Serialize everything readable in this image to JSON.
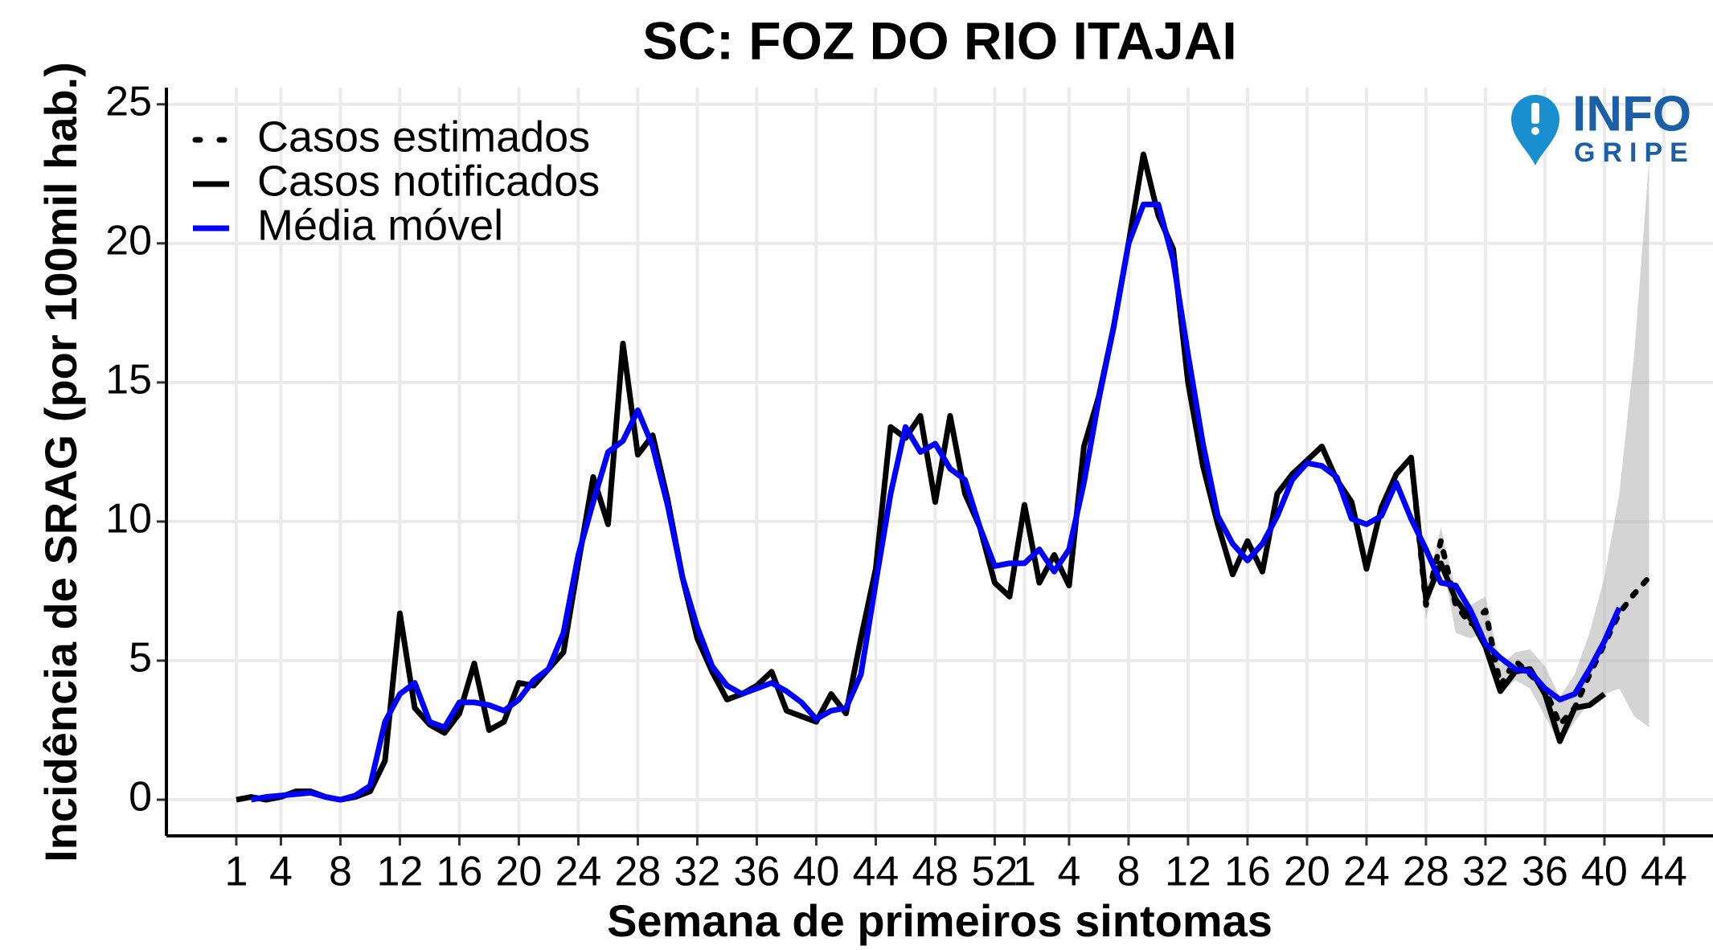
{
  "chart_data": {
    "type": "line",
    "title": "SC: FOZ DO RIO ITAJAI",
    "xlabel": "Semana de primeiros sintomas",
    "ylabel": "Incidência de SRAG (por 100mil hab.)",
    "xlim": [
      -3.7,
      100.3
    ],
    "ylim": [
      -1.3,
      25.6
    ],
    "grid": true,
    "legend": "upper left",
    "xticks": [
      1,
      4,
      8,
      12,
      16,
      20,
      24,
      28,
      32,
      36,
      40,
      44,
      48,
      52,
      {
        "value": 54,
        "label": "1"
      },
      {
        "value": 57,
        "label": "4"
      },
      {
        "value": 61,
        "label": "8"
      },
      {
        "value": 65,
        "label": "12"
      },
      {
        "value": 69,
        "label": "16"
      },
      {
        "value": 73,
        "label": "20"
      },
      {
        "value": 77,
        "label": "24"
      },
      {
        "value": 81,
        "label": "28"
      },
      {
        "value": 85,
        "label": "32"
      },
      {
        "value": 89,
        "label": "36"
      },
      {
        "value": 93,
        "label": "40"
      },
      {
        "value": 97,
        "label": "44"
      }
    ],
    "yticks": [
      0,
      5,
      10,
      15,
      20,
      25
    ],
    "band": {
      "color": "#b0b0b0",
      "x": [
        80,
        81,
        82,
        83,
        84,
        85,
        86,
        87,
        88,
        89,
        90,
        91,
        92,
        93,
        94,
        95,
        96
      ],
      "lower": [
        12.0,
        6.5,
        8.8,
        6.0,
        5.8,
        6.0,
        3.8,
        4.3,
        4.0,
        3.0,
        2.0,
        2.8,
        3.5,
        3.8,
        4.0,
        3.0,
        2.6
      ],
      "upper": [
        12.5,
        7.5,
        9.8,
        7.5,
        7.0,
        7.3,
        4.8,
        5.3,
        5.4,
        4.8,
        3.7,
        4.5,
        6.0,
        8.0,
        11.0,
        16.0,
        23.0
      ]
    },
    "series": [
      {
        "name": "Casos estimados",
        "color": "#000000",
        "linestyle": "dotted",
        "x": [
          80,
          81,
          82,
          83,
          84,
          85,
          86,
          87,
          88,
          89,
          90,
          91,
          92,
          93,
          94,
          95,
          96
        ],
        "values": [
          12.3,
          7.0,
          9.3,
          7.0,
          6.3,
          6.8,
          4.1,
          5.0,
          4.5,
          4.0,
          2.7,
          3.3,
          4.5,
          5.6,
          6.7,
          7.4,
          8.0
        ]
      },
      {
        "name": "Casos notificados",
        "color": "#000000",
        "linestyle": "solid",
        "x": [
          1,
          2,
          3,
          4,
          5,
          6,
          7,
          8,
          9,
          10,
          11,
          12,
          13,
          14,
          15,
          16,
          17,
          18,
          19,
          20,
          21,
          22,
          23,
          24,
          25,
          26,
          27,
          28,
          29,
          30,
          31,
          32,
          33,
          34,
          35,
          36,
          37,
          38,
          39,
          40,
          41,
          42,
          43,
          44,
          45,
          46,
          47,
          48,
          49,
          50,
          51,
          52,
          53,
          54,
          55,
          56,
          57,
          58,
          59,
          60,
          61,
          62,
          63,
          64,
          65,
          66,
          67,
          68,
          69,
          70,
          71,
          72,
          73,
          74,
          75,
          76,
          77,
          78,
          79,
          80,
          81,
          82,
          83,
          84,
          85,
          86,
          87,
          88,
          89,
          90,
          91,
          92,
          93
        ],
        "values": [
          0,
          0.1,
          0,
          0.1,
          0.3,
          0.3,
          0.1,
          0,
          0.1,
          0.3,
          1.4,
          6.7,
          3.3,
          2.7,
          2.4,
          3.1,
          4.9,
          2.5,
          2.8,
          4.2,
          4.1,
          4.7,
          5.3,
          8.5,
          11.6,
          9.9,
          16.4,
          12.4,
          13.1,
          10.8,
          8.0,
          5.8,
          4.6,
          3.6,
          3.8,
          4.1,
          4.6,
          3.2,
          3.0,
          2.8,
          3.8,
          3.1,
          5.8,
          8.3,
          13.4,
          13.0,
          13.8,
          10.7,
          13.8,
          11.0,
          9.8,
          7.8,
          7.3,
          10.6,
          7.8,
          8.8,
          7.7,
          12.7,
          14.5,
          17.0,
          20.0,
          23.2,
          21.0,
          19.8,
          15.0,
          12.0,
          9.9,
          8.1,
          9.3,
          8.2,
          11.0,
          11.7,
          12.2,
          12.7,
          11.5,
          10.7,
          8.3,
          10.5,
          11.7,
          12.3,
          7.2,
          8.5,
          7.2,
          6.5,
          5.5,
          3.9,
          4.6,
          4.7,
          3.8,
          2.1,
          3.3,
          3.4,
          3.8
        ]
      },
      {
        "name": "Média móvel",
        "color": "#0000ff",
        "linestyle": "solid",
        "x": [
          2,
          3,
          4,
          5,
          6,
          7,
          8,
          9,
          10,
          11,
          12,
          13,
          14,
          15,
          16,
          17,
          18,
          19,
          20,
          21,
          22,
          23,
          24,
          25,
          26,
          27,
          28,
          29,
          30,
          31,
          32,
          33,
          34,
          35,
          36,
          37,
          38,
          39,
          40,
          41,
          42,
          43,
          44,
          45,
          46,
          47,
          48,
          49,
          50,
          51,
          52,
          53,
          54,
          55,
          56,
          57,
          58,
          59,
          60,
          61,
          62,
          63,
          64,
          65,
          66,
          67,
          68,
          69,
          70,
          71,
          72,
          73,
          74,
          75,
          76,
          77,
          78,
          79,
          80,
          81,
          82,
          83,
          84,
          85,
          86,
          87,
          88,
          89,
          90,
          91,
          92,
          93,
          94
        ],
        "values": [
          0,
          0.1,
          0.15,
          0.2,
          0.25,
          0.1,
          0,
          0.15,
          0.5,
          2.8,
          3.8,
          4.2,
          2.8,
          2.6,
          3.5,
          3.5,
          3.4,
          3.2,
          3.6,
          4.3,
          4.7,
          6.0,
          8.8,
          10.7,
          12.5,
          12.9,
          14.0,
          12.7,
          10.6,
          8.0,
          6.2,
          4.8,
          4.1,
          3.8,
          4.0,
          4.2,
          3.9,
          3.5,
          2.9,
          3.2,
          3.3,
          4.5,
          7.8,
          11.0,
          13.4,
          12.5,
          12.8,
          11.9,
          11.5,
          9.8,
          8.4,
          8.5,
          8.5,
          9.0,
          8.2,
          9.0,
          11.4,
          14.4,
          17.0,
          20.0,
          21.4,
          21.4,
          19.4,
          16.0,
          12.8,
          10.2,
          9.2,
          8.6,
          9.2,
          10.2,
          11.5,
          12.1,
          12.0,
          11.6,
          10.1,
          9.9,
          10.2,
          11.4,
          10.1,
          9.0,
          7.8,
          7.7,
          6.8,
          5.6,
          5.1,
          4.7,
          4.6,
          4.0,
          3.6,
          3.8,
          4.7,
          5.7,
          6.9
        ]
      }
    ]
  },
  "logo": {
    "line1": "INFO",
    "line2": "GRIPE"
  }
}
